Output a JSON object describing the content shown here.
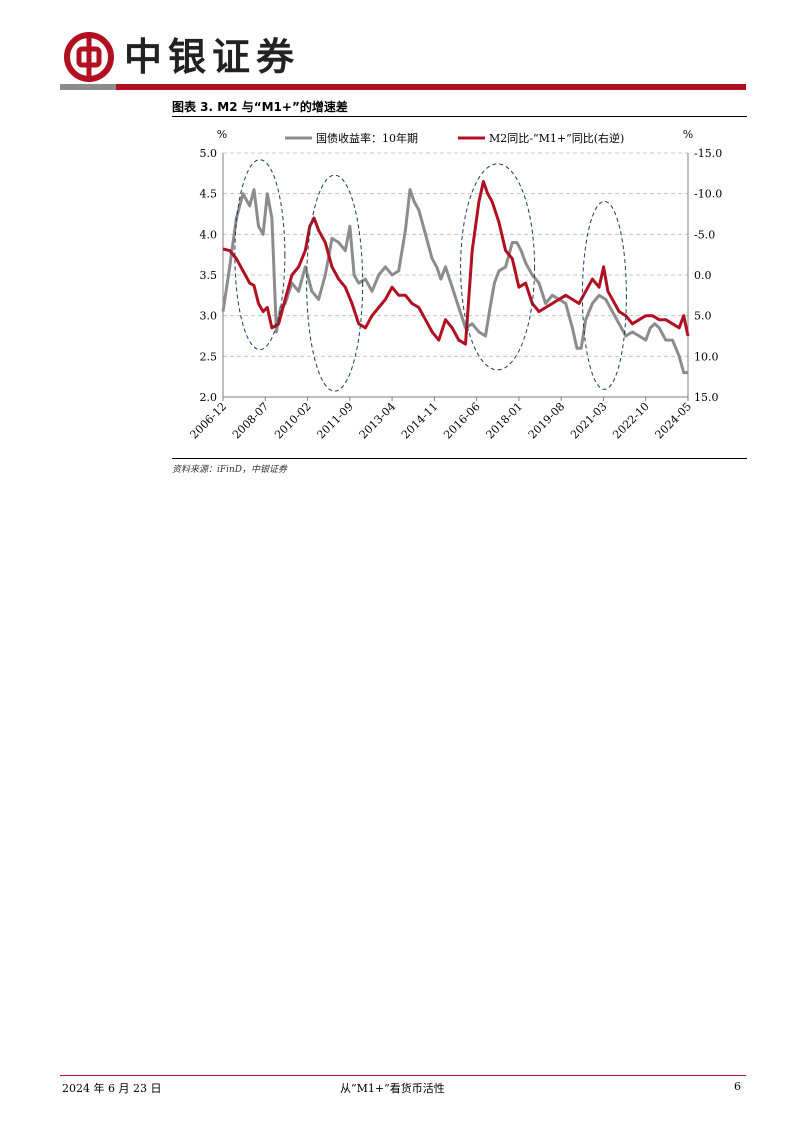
{
  "header": {
    "brand": "中银证券",
    "logo_icon": "bank-of-china-logo-icon",
    "brand_color": "#b01020"
  },
  "figure": {
    "title": "图表 3. M2 与“M1+”的增速差",
    "source": "资料来源：iFinD，中银证券"
  },
  "footer": {
    "date": "2024 年 6 月 23 日",
    "doc_title": "从“M1+”看货币活性",
    "page": "6"
  },
  "chart_data": {
    "type": "line",
    "left_unit": "%",
    "right_unit": "%",
    "x_ticks": [
      "2006-12",
      "2008-07",
      "2010-02",
      "2011-09",
      "2013-04",
      "2014-11",
      "2016-06",
      "2018-01",
      "2019-08",
      "2021-03",
      "2022-10",
      "2024-05"
    ],
    "x_range": [
      2006.92,
      2024.33
    ],
    "y_left": {
      "min": 2.0,
      "max": 5.0,
      "ticks": [
        "2.0",
        "2.5",
        "3.0",
        "3.5",
        "4.0",
        "4.5",
        "5.0"
      ]
    },
    "y_right": {
      "min": -15.0,
      "max": 15.0,
      "reversed": true,
      "ticks": [
        "-15.0",
        "-10.0",
        "-5.0",
        "0.0",
        "5.0",
        "10.0",
        "15.0"
      ]
    },
    "grid": "horizontal dashed",
    "legend_position": "top",
    "series": [
      {
        "name": "国债收益率：10年期",
        "axis": "left",
        "color": "#8c8c8c",
        "x": [
          2006.92,
          2007.17,
          2007.42,
          2007.67,
          2007.92,
          2008.08,
          2008.25,
          2008.42,
          2008.58,
          2008.75,
          2008.92,
          2009.08,
          2009.25,
          2009.5,
          2009.75,
          2010.0,
          2010.25,
          2010.5,
          2010.75,
          2011.0,
          2011.25,
          2011.5,
          2011.67,
          2011.83,
          2012.0,
          2012.25,
          2012.5,
          2012.75,
          2013.0,
          2013.25,
          2013.5,
          2013.75,
          2013.92,
          2014.08,
          2014.25,
          2014.5,
          2014.75,
          2014.92,
          2015.08,
          2015.25,
          2015.5,
          2015.75,
          2016.0,
          2016.25,
          2016.5,
          2016.75,
          2016.92,
          2017.08,
          2017.25,
          2017.5,
          2017.75,
          2017.92,
          2018.08,
          2018.25,
          2018.5,
          2018.75,
          2019.0,
          2019.25,
          2019.5,
          2019.75,
          2020.0,
          2020.17,
          2020.33,
          2020.5,
          2020.75,
          2021.0,
          2021.25,
          2021.5,
          2021.75,
          2022.0,
          2022.25,
          2022.5,
          2022.75,
          2022.92,
          2023.08,
          2023.25,
          2023.5,
          2023.75,
          2024.0,
          2024.17,
          2024.33
        ],
        "y": [
          3.05,
          3.6,
          4.2,
          4.5,
          4.35,
          4.55,
          4.1,
          4.0,
          4.5,
          4.2,
          2.8,
          3.1,
          3.15,
          3.4,
          3.3,
          3.6,
          3.3,
          3.2,
          3.5,
          3.95,
          3.9,
          3.8,
          4.1,
          3.5,
          3.4,
          3.45,
          3.3,
          3.5,
          3.6,
          3.5,
          3.55,
          4.05,
          4.55,
          4.4,
          4.3,
          4.0,
          3.7,
          3.6,
          3.45,
          3.6,
          3.35,
          3.1,
          2.85,
          2.9,
          2.8,
          2.75,
          3.1,
          3.4,
          3.55,
          3.6,
          3.9,
          3.9,
          3.8,
          3.65,
          3.5,
          3.4,
          3.15,
          3.25,
          3.2,
          3.15,
          2.85,
          2.6,
          2.6,
          2.95,
          3.15,
          3.25,
          3.2,
          3.05,
          2.9,
          2.75,
          2.8,
          2.75,
          2.7,
          2.85,
          2.9,
          2.85,
          2.7,
          2.7,
          2.5,
          2.3,
          2.3
        ]
      },
      {
        "name": "M2同比-“M1+”同比(右逆)",
        "axis": "right",
        "color": "#b01020",
        "x": [
          2006.92,
          2007.17,
          2007.42,
          2007.67,
          2007.92,
          2008.08,
          2008.25,
          2008.42,
          2008.58,
          2008.75,
          2009.0,
          2009.25,
          2009.5,
          2009.75,
          2010.0,
          2010.17,
          2010.33,
          2010.5,
          2010.75,
          2011.0,
          2011.25,
          2011.5,
          2011.75,
          2012.0,
          2012.25,
          2012.5,
          2012.75,
          2013.0,
          2013.25,
          2013.5,
          2013.75,
          2014.0,
          2014.25,
          2014.5,
          2014.75,
          2015.0,
          2015.25,
          2015.5,
          2015.75,
          2016.0,
          2016.25,
          2016.5,
          2016.67,
          2016.83,
          2017.0,
          2017.25,
          2017.5,
          2017.75,
          2018.0,
          2018.25,
          2018.5,
          2018.75,
          2019.0,
          2019.25,
          2019.5,
          2019.75,
          2020.0,
          2020.25,
          2020.5,
          2020.75,
          2021.0,
          2021.17,
          2021.33,
          2021.5,
          2021.75,
          2022.0,
          2022.25,
          2022.5,
          2022.75,
          2023.0,
          2023.25,
          2023.5,
          2023.75,
          2024.0,
          2024.17,
          2024.33
        ],
        "y": [
          -3.2,
          -3.0,
          -2.0,
          -0.5,
          1.0,
          1.3,
          3.5,
          4.5,
          4.0,
          6.5,
          6.0,
          3.0,
          0.0,
          -1.0,
          -3.0,
          -6.0,
          -7.0,
          -5.5,
          -4.0,
          -1.0,
          0.5,
          1.5,
          3.5,
          6.0,
          6.5,
          5.0,
          4.0,
          3.0,
          1.5,
          2.5,
          2.5,
          3.5,
          4.0,
          5.5,
          7.0,
          8.0,
          5.5,
          6.5,
          8.0,
          8.5,
          -3.0,
          -9.0,
          -11.5,
          -10.0,
          -9.0,
          -6.5,
          -3.0,
          -2.0,
          1.5,
          1.0,
          3.5,
          4.5,
          4.0,
          3.5,
          3.0,
          2.5,
          3.0,
          3.5,
          2.0,
          0.5,
          1.5,
          -1.0,
          2.0,
          3.0,
          4.5,
          5.0,
          6.0,
          5.5,
          5.0,
          5.0,
          5.5,
          5.5,
          6.0,
          6.5,
          5.0,
          7.5
        ]
      }
    ]
  }
}
